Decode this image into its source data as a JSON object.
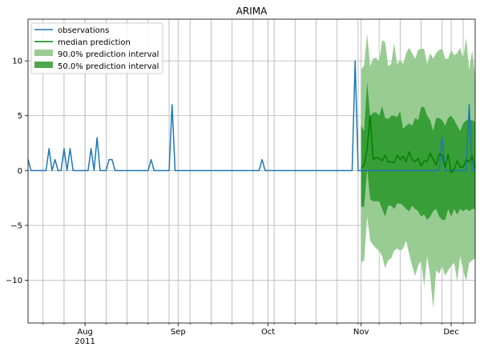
{
  "chart_data": {
    "type": "line",
    "title": "ARIMA",
    "xlabel": "",
    "ylabel": "",
    "xlim": [
      "2011-07-13",
      "2011-12-09"
    ],
    "ylim": [
      -13.9,
      13.8
    ],
    "grid": true,
    "legend_position": "top-left",
    "x_tick_labels": [
      {
        "date": "2011-08-01",
        "label": "Aug",
        "sublabel": "2011"
      },
      {
        "date": "2011-09-01",
        "label": "Sep",
        "sublabel": ""
      },
      {
        "date": "2011-10-01",
        "label": "Oct",
        "sublabel": ""
      },
      {
        "date": "2011-11-01",
        "label": "Nov",
        "sublabel": ""
      },
      {
        "date": "2011-12-01",
        "label": "Dec",
        "sublabel": ""
      }
    ],
    "y_ticks": [
      -10,
      -5,
      0,
      5,
      10
    ],
    "y_tick_labels": [
      "−10",
      "−5",
      "0",
      "5",
      "10"
    ],
    "colors": {
      "observations": "#1f77b4",
      "median": "#008000",
      "interval_90": "#98cc93",
      "interval_50": "#389e38"
    },
    "legend": [
      "observations",
      "median prediction",
      "90.0% prediction interval",
      "50.0% prediction interval"
    ],
    "observations": {
      "name": "observations",
      "x": [
        "2011-07-13",
        "2011-07-14",
        "2011-07-15",
        "2011-07-16",
        "2011-07-17",
        "2011-07-18",
        "2011-07-19",
        "2011-07-20",
        "2011-07-21",
        "2011-07-22",
        "2011-07-23",
        "2011-07-24",
        "2011-07-25",
        "2011-07-26",
        "2011-07-27",
        "2011-07-28",
        "2011-07-29",
        "2011-07-30",
        "2011-07-31",
        "2011-08-01",
        "2011-08-02",
        "2011-08-03",
        "2011-08-04",
        "2011-08-05",
        "2011-08-06",
        "2011-08-07",
        "2011-08-08",
        "2011-08-09",
        "2011-08-10",
        "2011-08-11",
        "2011-08-12",
        "2011-08-13",
        "2011-08-14",
        "2011-08-15",
        "2011-08-16",
        "2011-08-17",
        "2011-08-18",
        "2011-08-19",
        "2011-08-20",
        "2011-08-21",
        "2011-08-22",
        "2011-08-23",
        "2011-08-24",
        "2011-08-25",
        "2011-08-26",
        "2011-08-27",
        "2011-08-28",
        "2011-08-29",
        "2011-08-30",
        "2011-08-31",
        "2011-09-01",
        "2011-09-02",
        "2011-09-03",
        "2011-09-04",
        "2011-09-05",
        "2011-09-06",
        "2011-09-07",
        "2011-09-08",
        "2011-09-09",
        "2011-09-10",
        "2011-09-11",
        "2011-09-12",
        "2011-09-13",
        "2011-09-14",
        "2011-09-15",
        "2011-09-16",
        "2011-09-17",
        "2011-09-18",
        "2011-09-19",
        "2011-09-20",
        "2011-09-21",
        "2011-09-22",
        "2011-09-23",
        "2011-09-24",
        "2011-09-25",
        "2011-09-26",
        "2011-09-27",
        "2011-09-28",
        "2011-09-29",
        "2011-09-30",
        "2011-10-01",
        "2011-10-02",
        "2011-10-03",
        "2011-10-04",
        "2011-10-05",
        "2011-10-06",
        "2011-10-07",
        "2011-10-08",
        "2011-10-09",
        "2011-10-10",
        "2011-10-11",
        "2011-10-12",
        "2011-10-13",
        "2011-10-14",
        "2011-10-15",
        "2011-10-16",
        "2011-10-17",
        "2011-10-18",
        "2011-10-19",
        "2011-10-20",
        "2011-10-21",
        "2011-10-22",
        "2011-10-23",
        "2011-10-24",
        "2011-10-25",
        "2011-10-26",
        "2011-10-27",
        "2011-10-28",
        "2011-10-29",
        "2011-10-30",
        "2011-10-31",
        "2011-11-01",
        "2011-11-02",
        "2011-11-03",
        "2011-11-04",
        "2011-11-05",
        "2011-11-06",
        "2011-11-07",
        "2011-11-08",
        "2011-11-09",
        "2011-11-10",
        "2011-11-11",
        "2011-11-12",
        "2011-11-13",
        "2011-11-14",
        "2011-11-15",
        "2011-11-16",
        "2011-11-17",
        "2011-11-18",
        "2011-11-19",
        "2011-11-20",
        "2011-11-21",
        "2011-11-22",
        "2011-11-23",
        "2011-11-24",
        "2011-11-25",
        "2011-11-26",
        "2011-11-27",
        "2011-11-28",
        "2011-11-29",
        "2011-11-30",
        "2011-12-01",
        "2011-12-02",
        "2011-12-03",
        "2011-12-04",
        "2011-12-05",
        "2011-12-06",
        "2011-12-07",
        "2011-12-08",
        "2011-12-09"
      ],
      "y": [
        1,
        0,
        0,
        0,
        0,
        0,
        0,
        2,
        0,
        1,
        0,
        0,
        2,
        0,
        2,
        0,
        0,
        0,
        0,
        0,
        0,
        2,
        0,
        3,
        0,
        0,
        0,
        1,
        1,
        0,
        0,
        0,
        0,
        0,
        0,
        0,
        0,
        0,
        0,
        0,
        0,
        1,
        0,
        0,
        0,
        0,
        0,
        0,
        6,
        0,
        0,
        0,
        0,
        0,
        0,
        0,
        0,
        0,
        0,
        0,
        0,
        0,
        0,
        0,
        0,
        0,
        0,
        0,
        0,
        0,
        0,
        0,
        0,
        0,
        0,
        0,
        0,
        0,
        1,
        0,
        0,
        0,
        0,
        0,
        0,
        0,
        0,
        0,
        0,
        0,
        0,
        0,
        0,
        0,
        0,
        0,
        0,
        0,
        0,
        0,
        0,
        0,
        0,
        0,
        0,
        0,
        0,
        0,
        0,
        10,
        0,
        0,
        0,
        0,
        0,
        0,
        0,
        0,
        0,
        0,
        0,
        0,
        0,
        0,
        0,
        0,
        0,
        0,
        0,
        0,
        0,
        0,
        0,
        0,
        0,
        0,
        0,
        0,
        3,
        0,
        0,
        0,
        0,
        0,
        0,
        0,
        0,
        6,
        0,
        0
      ]
    },
    "forecast": {
      "x_from": "2011-11-01",
      "median": {
        "name": "median prediction",
        "y": [
          0.2,
          0.5,
          2.0,
          5.0,
          1.0,
          1.2,
          1.1,
          0.9,
          1.4,
          0.8,
          0.8,
          0.7,
          1.4,
          1.0,
          1.3,
          0.8,
          1.7,
          1.0,
          0.8,
          1.1,
          0.4,
          0.9,
          0.8,
          1.6,
          1.0,
          0.5,
          1.5,
          1.4,
          0.3,
          1.5,
          -0.2,
          0.1,
          0.9,
          0.3,
          0.3,
          1.0,
          0.8,
          1.3,
          0.2
        ]
      },
      "interval_90": {
        "name": "90.0% prediction interval",
        "upper": [
          9.2,
          9.6,
          12.5,
          9.5,
          10.2,
          10.3,
          9.9,
          11.9,
          11.7,
          9.5,
          9.7,
          11.6,
          9.7,
          10.1,
          9.7,
          10.7,
          11.2,
          10.7,
          10.2,
          11.0,
          11.1,
          11.1,
          9.7,
          10.7,
          10.2,
          10.7,
          11.0,
          11.1,
          10.2,
          10.2,
          11.0,
          10.5,
          10.7,
          11.2,
          10.2,
          12.1,
          9.2,
          11.0,
          8.5
        ],
        "lower": [
          -8.4,
          -8.2,
          -4.2,
          -6.4,
          -6.8,
          -7.1,
          -7.3,
          -7.8,
          -8.9,
          -8.2,
          -8.0,
          -7.3,
          -7.1,
          -7.3,
          -7.1,
          -6.4,
          -7.6,
          -8.7,
          -9.6,
          -8.7,
          -8.2,
          -10.6,
          -7.8,
          -9.6,
          -12.6,
          -9.1,
          -9.4,
          -8.7,
          -9.6,
          -9.1,
          -8.7,
          -8.4,
          -10.1,
          -7.8,
          -9.1,
          -10.1,
          -8.4,
          -8.2,
          -8.0
        ]
      },
      "interval_50": {
        "name": "50.0% prediction interval",
        "upper": [
          4.1,
          3.6,
          8.1,
          4.9,
          5.3,
          5.3,
          5.0,
          5.9,
          4.8,
          4.7,
          5.0,
          5.0,
          4.9,
          5.4,
          3.8,
          4.1,
          4.3,
          4.1,
          4.8,
          4.6,
          5.8,
          5.8,
          5.0,
          4.6,
          3.6,
          4.8,
          4.8,
          4.6,
          4.1,
          4.8,
          5.0,
          4.6,
          4.1,
          3.6,
          4.3,
          4.6,
          4.6,
          4.6,
          4.4
        ],
        "lower": [
          -3.3,
          -3.3,
          0.2,
          -2.6,
          -2.8,
          -2.8,
          -2.8,
          -3.5,
          -4.2,
          -3.2,
          -3.2,
          -3.5,
          -3.0,
          -3.0,
          -3.2,
          -3.5,
          -3.7,
          -3.2,
          -3.5,
          -3.7,
          -4.2,
          -4.0,
          -4.5,
          -4.2,
          -3.7,
          -3.5,
          -4.2,
          -4.5,
          -4.5,
          -3.5,
          -4.2,
          -3.5,
          -4.0,
          -3.5,
          -3.7,
          -3.5,
          -3.7,
          -3.5,
          -3.5
        ]
      }
    }
  }
}
